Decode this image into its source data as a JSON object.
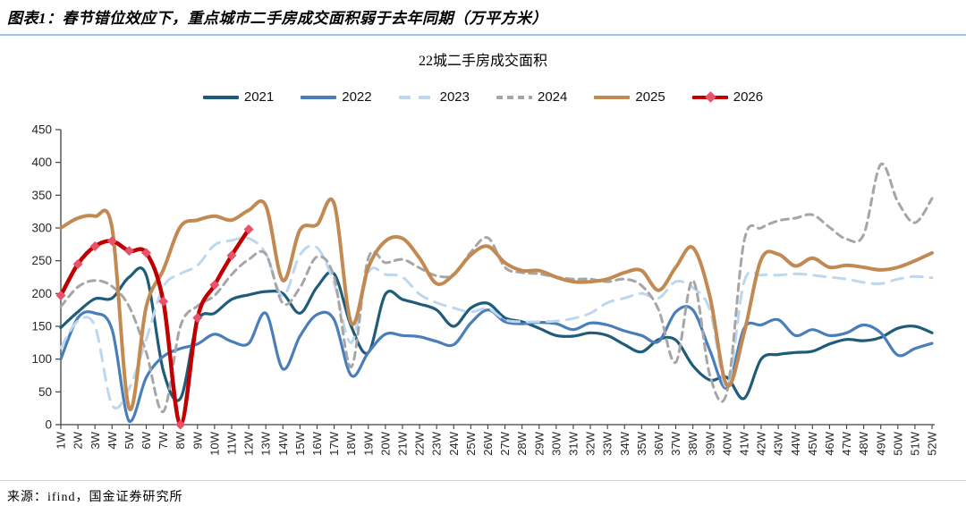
{
  "header": {
    "title": "图表1：春节错位效应下，重点城市二手房成交面积弱于去年同期（万平方米）"
  },
  "chart": {
    "subtitle": "22城二手房成交面积"
  },
  "footer": {
    "source": "来源：ifind，国金证券研究所"
  },
  "colors": {
    "axis": "#404040",
    "tick_label": "#262626",
    "header_divider": "#9DC3E6",
    "footer_divider": "#C5D5E4"
  },
  "chart_data": {
    "type": "line",
    "title": "22城二手房成交面积",
    "xlabel": "",
    "ylabel": "",
    "ylim": [
      0,
      450
    ],
    "y_ticks": [
      0,
      50,
      100,
      150,
      200,
      250,
      300,
      350,
      400,
      450
    ],
    "grid": false,
    "legend_position": "top",
    "x_labels": [
      "1W",
      "2W",
      "3W",
      "4W",
      "5W",
      "6W",
      "7W",
      "8W",
      "9W",
      "10W",
      "11W",
      "12W",
      "13W",
      "14W",
      "15W",
      "16W",
      "17W",
      "18W",
      "19W",
      "20W",
      "21W",
      "22W",
      "23W",
      "24W",
      "25W",
      "26W",
      "27W",
      "28W",
      "29W",
      "30W",
      "31W",
      "32W",
      "33W",
      "34W",
      "35W",
      "36W",
      "37W",
      "38W",
      "39W",
      "40W",
      "41W",
      "42W",
      "43W",
      "44W",
      "45W",
      "46W",
      "47W",
      "48W",
      "49W",
      "50W",
      "51W",
      "52W"
    ],
    "series": [
      {
        "name": "2021",
        "color": "#1F5C7A",
        "style": "solid",
        "width": 3.2,
        "values": [
          148,
          172,
          192,
          193,
          225,
          228,
          82,
          40,
          157,
          170,
          191,
          198,
          203,
          200,
          170,
          210,
          230,
          150,
          110,
          199,
          191,
          184,
          175,
          150,
          178,
          185,
          163,
          157,
          147,
          136,
          135,
          140,
          136,
          122,
          111,
          130,
          129,
          90,
          68,
          72,
          40,
          100,
          107,
          110,
          112,
          123,
          130,
          128,
          133,
          147,
          150,
          140
        ]
      },
      {
        "name": "2022",
        "color": "#4A7EBB",
        "style": "solid",
        "width": 3.2,
        "values": [
          100,
          163,
          170,
          145,
          5,
          72,
          104,
          116,
          123,
          138,
          127,
          124,
          170,
          85,
          135,
          168,
          160,
          75,
          110,
          138,
          136,
          134,
          127,
          122,
          155,
          175,
          157,
          154,
          156,
          154,
          145,
          155,
          152,
          143,
          136,
          127,
          172,
          175,
          113,
          56,
          147,
          152,
          160,
          136,
          145,
          136,
          140,
          152,
          140,
          106,
          116,
          124
        ]
      },
      {
        "name": "2023",
        "color": "#BDD7EE",
        "style": "dashed",
        "width": 3,
        "values": [
          117,
          158,
          150,
          30,
          55,
          130,
          210,
          230,
          243,
          274,
          281,
          284,
          261,
          196,
          259,
          270,
          215,
          125,
          232,
          229,
          225,
          199,
          186,
          178,
          172,
          177,
          160,
          157,
          157,
          158,
          162,
          170,
          186,
          193,
          200,
          193,
          218,
          209,
          175,
          58,
          218,
          228,
          228,
          230,
          228,
          225,
          222,
          217,
          215,
          222,
          226,
          224
        ]
      },
      {
        "name": "2024",
        "color": "#A6A6A6",
        "style": "dashed",
        "width": 3,
        "values": [
          180,
          210,
          220,
          211,
          180,
          110,
          20,
          150,
          181,
          197,
          229,
          252,
          260,
          185,
          209,
          256,
          225,
          88,
          254,
          247,
          252,
          239,
          227,
          229,
          263,
          285,
          240,
          232,
          230,
          225,
          222,
          222,
          218,
          222,
          212,
          175,
          95,
          220,
          75,
          50,
          280,
          300,
          311,
          315,
          320,
          301,
          283,
          290,
          397,
          340,
          308,
          345
        ]
      },
      {
        "name": "2025",
        "color": "#C28A52",
        "style": "solid",
        "width": 4,
        "values": [
          300,
          315,
          318,
          300,
          25,
          180,
          236,
          302,
          312,
          318,
          312,
          327,
          334,
          220,
          297,
          305,
          337,
          155,
          240,
          280,
          284,
          254,
          215,
          229,
          259,
          272,
          247,
          235,
          235,
          225,
          218,
          218,
          222,
          232,
          235,
          205,
          240,
          270,
          195,
          60,
          140,
          252,
          260,
          242,
          254,
          240,
          243,
          240,
          236,
          240,
          250,
          262
        ]
      },
      {
        "name": "2026",
        "color": "#C00000",
        "style": "solid",
        "width": 4.5,
        "marker": "diamond",
        "marker_color": "#E8536B",
        "values": [
          197,
          245,
          272,
          280,
          265,
          262,
          188,
          0,
          163,
          213,
          258,
          298
        ]
      }
    ]
  }
}
